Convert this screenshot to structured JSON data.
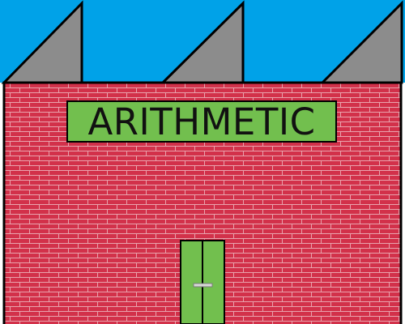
{
  "building": {
    "sign_label": "ARITHMETIC"
  },
  "colors": {
    "sky": "#00a2e8",
    "roof": "#8c8c8c",
    "brick": "#d2314a",
    "mortar": "#e9a3ad",
    "sign_fill": "#72bf4e",
    "door_fill": "#72bf4e",
    "outline": "#000000"
  },
  "icons": {
    "door_handle": "horizontal-bar-handle-icon"
  }
}
